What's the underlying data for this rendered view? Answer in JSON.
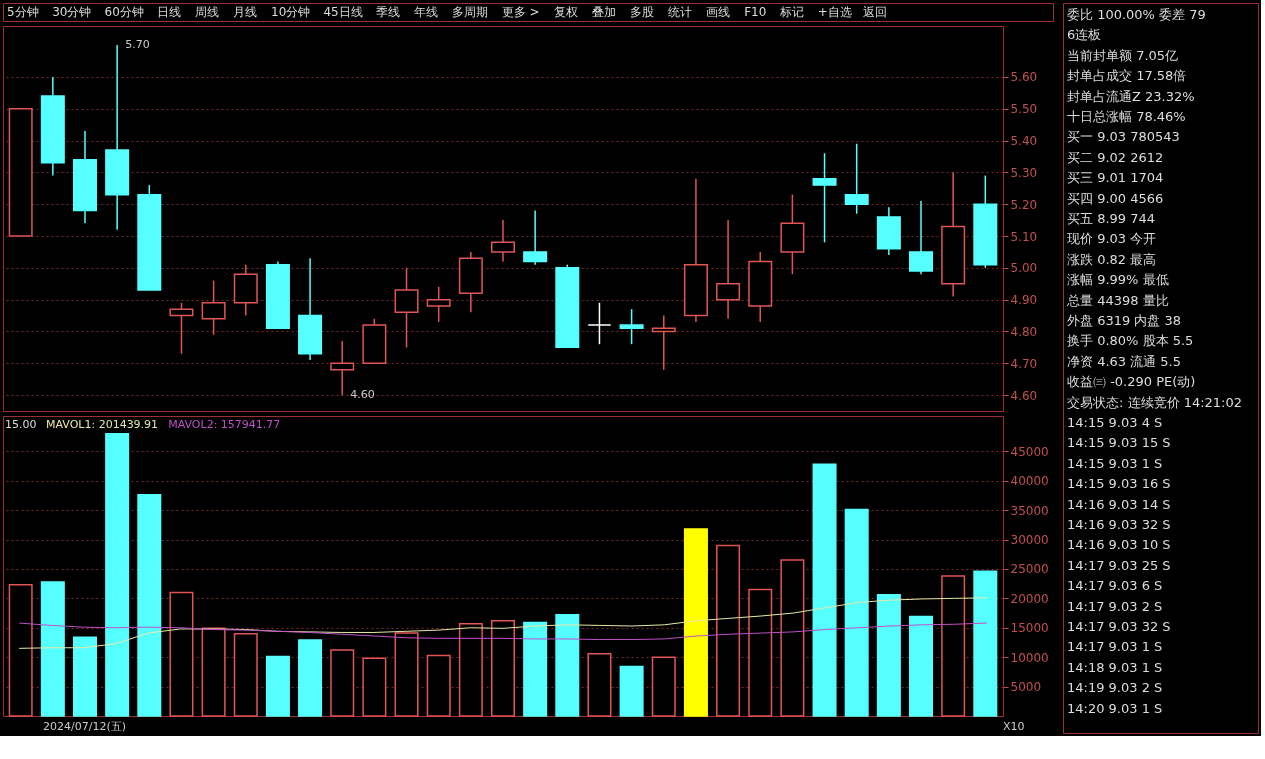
{
  "chart_data": [
    {
      "type": "other",
      "annotations": [
        "5分钟",
        "30分钟",
        "60分钟",
        "日线",
        "周线",
        "月线",
        "10分钟",
        "45日线",
        "季线",
        "年线",
        "多周期",
        "更多 >",
        "复权",
        "叠加",
        "多股",
        "统计",
        "画线",
        "F10",
        "标记",
        "+自选",
        "返回"
      ]
    },
    {
      "type": "candlestick",
      "categories": [
        null,
        null,
        null,
        null,
        null,
        null,
        null,
        null,
        null,
        null,
        null,
        null,
        null,
        null,
        null,
        null,
        null,
        null,
        null,
        null,
        null,
        null,
        null,
        null,
        null,
        null,
        null,
        null,
        null,
        null,
        null
      ],
      "ohlc": [
        [
          5.1,
          5.5,
          5.1,
          5.5
        ],
        [
          5.54,
          5.6,
          5.29,
          5.33
        ],
        [
          5.34,
          5.43,
          5.14,
          5.18
        ],
        [
          5.37,
          5.7,
          5.12,
          5.23
        ],
        [
          5.23,
          5.26,
          4.93,
          4.93
        ],
        [
          4.85,
          4.89,
          4.73,
          4.87
        ],
        [
          4.84,
          4.96,
          4.79,
          4.89
        ],
        [
          4.89,
          5.01,
          4.85,
          4.98
        ],
        [
          5.01,
          5.02,
          4.81,
          4.81
        ],
        [
          4.85,
          5.03,
          4.71,
          4.73
        ],
        [
          4.68,
          4.77,
          4.6,
          4.7
        ],
        [
          4.7,
          4.84,
          4.7,
          4.82
        ],
        [
          4.86,
          5.0,
          4.75,
          4.93
        ],
        [
          4.88,
          4.94,
          4.83,
          4.9
        ],
        [
          4.92,
          5.05,
          4.86,
          5.03
        ],
        [
          5.05,
          5.15,
          5.02,
          5.08
        ],
        [
          5.05,
          5.18,
          5.01,
          5.02
        ],
        [
          5.0,
          5.01,
          4.75,
          4.75
        ],
        [
          4.82,
          4.89,
          4.76,
          4.82
        ],
        [
          4.82,
          4.87,
          4.76,
          4.81
        ],
        [
          4.8,
          4.85,
          4.68,
          4.81
        ],
        [
          4.85,
          5.28,
          4.83,
          5.01
        ],
        [
          4.9,
          5.15,
          4.84,
          4.95
        ],
        [
          4.88,
          5.05,
          4.83,
          5.02
        ],
        [
          5.05,
          5.23,
          4.98,
          5.14
        ],
        [
          5.28,
          5.36,
          5.08,
          5.26
        ],
        [
          5.23,
          5.39,
          5.17,
          5.2
        ],
        [
          5.16,
          5.19,
          5.04,
          5.06
        ],
        [
          5.05,
          5.21,
          4.98,
          4.99
        ],
        [
          4.95,
          5.3,
          4.91,
          5.13
        ],
        [
          5.2,
          5.29,
          5.0,
          5.01
        ]
      ],
      "colors": [
        "#e05555",
        "#55ffff",
        "#55ffff",
        "#55ffff",
        "#55ffff",
        "#e05555",
        "#e05555",
        "#e05555",
        "#55ffff",
        "#55ffff",
        "#e05555",
        "#e05555",
        "#e05555",
        "#e05555",
        "#e05555",
        "#e05555",
        "#55ffff",
        "#55ffff",
        "#ffffff",
        "#55ffff",
        "#e05555",
        "#e05555",
        "#e05555",
        "#e05555",
        "#e05555",
        "#55ffff",
        "#55ffff",
        "#55ffff",
        "#55ffff",
        "#e05555",
        "#55ffff"
      ],
      "ylim": [
        4.55,
        5.76
      ],
      "yticks": [
        {
          "value": 4.6,
          "label": "4.60"
        },
        {
          "value": 4.7,
          "label": "4.70"
        },
        {
          "value": 4.8,
          "label": "4.80"
        },
        {
          "value": 4.9,
          "label": "4.90"
        },
        {
          "value": 5.0,
          "label": "5.00"
        },
        {
          "value": 5.1,
          "label": "5.10"
        },
        {
          "value": 5.2,
          "label": "5.20"
        },
        {
          "value": 5.3,
          "label": "5.30"
        },
        {
          "value": 5.4,
          "label": "5.40"
        },
        {
          "value": 5.5,
          "label": "5.50"
        },
        {
          "value": 5.6,
          "label": "5.60"
        }
      ],
      "annotations": [
        "5.70",
        "4.60"
      ],
      "grid": "y",
      "tick_labels": "y"
    },
    {
      "type": "bar",
      "categories": [
        null,
        null,
        null,
        null,
        null,
        null,
        null,
        null,
        null,
        null,
        null,
        null,
        null,
        null,
        null,
        null,
        null,
        null,
        null,
        null,
        null,
        null,
        null,
        null,
        null,
        null,
        null,
        null,
        null,
        null,
        null
      ],
      "series": [
        {
          "color": "#e05555",
          "values": [
            22300,
            null,
            null,
            null,
            null,
            21000,
            14900,
            14000,
            null,
            null,
            11200,
            9800,
            14100,
            10300,
            15700,
            16200,
            null,
            null,
            10600,
            null,
            10000,
            null,
            29000,
            21500,
            26500,
            null,
            null,
            null,
            null,
            23800,
            null
          ]
        },
        {
          "color": "#55ffff",
          "values": [
            null,
            22800,
            13400,
            48000,
            37600,
            null,
            null,
            null,
            10100,
            12900,
            null,
            null,
            null,
            null,
            null,
            null,
            15900,
            17200,
            null,
            8400,
            null,
            null,
            null,
            null,
            null,
            42800,
            35100,
            20600,
            16900,
            null,
            24600
          ]
        },
        {
          "color": "#ffff00",
          "values": [
            null,
            null,
            null,
            null,
            null,
            null,
            null,
            null,
            null,
            null,
            null,
            null,
            null,
            null,
            null,
            null,
            null,
            null,
            null,
            null,
            null,
            31800,
            null,
            null,
            null,
            null,
            null,
            null,
            null,
            null,
            null
          ]
        },
        {
          "type": "line",
          "name": "MAVOL1: 201439.91",
          "color": "#e8e8a8",
          "values": [
            11500,
            11600,
            11600,
            12300,
            14100,
            14800,
            14800,
            14700,
            14400,
            14300,
            14200,
            14200,
            14400,
            14600,
            15000,
            14900,
            15300,
            15500,
            15400,
            15300,
            15500,
            16200,
            16600,
            17000,
            17500,
            18400,
            19300,
            19700,
            19900,
            20000,
            20100
          ]
        },
        {
          "type": "line",
          "name": "MAVOL2: 157941.77",
          "color": "#c050c8",
          "values": [
            15800,
            15400,
            15100,
            15000,
            15100,
            15000,
            14700,
            14600,
            14400,
            14200,
            13900,
            13600,
            13300,
            13200,
            13200,
            13200,
            13100,
            13100,
            13000,
            13000,
            13100,
            13600,
            13900,
            14100,
            14300,
            14700,
            15000,
            15300,
            15500,
            15600,
            15800
          ]
        }
      ],
      "ylim": [
        0,
        51000
      ],
      "yticks": [
        5000,
        10000,
        15000,
        20000,
        25000,
        30000,
        35000,
        40000,
        45000
      ],
      "annotations": [
        "15.00",
        "2024/07/12(五)",
        "X10"
      ],
      "grid": "y",
      "legend": "top left",
      "tick_labels": "y"
    },
    {
      "type": "other",
      "annotations": [
        "委比 100.00% 委差 79",
        "6连板",
        "当前封单额 7.05亿",
        "封单占成交 17.58倍",
        "封单占流通Z 23.32%",
        "十日总涨幅 78.46%",
        "买一 9.03 780543",
        "买二 9.02 2612",
        "买三 9.01 1704",
        "买四 9.00 4566",
        "买五 8.99 744",
        "现价 9.03 今开",
        "涨跌 0.82 最高",
        "涨幅 9.99% 最低",
        "总量 44398 量比",
        "外盘 6319 内盘 38",
        "换手 0.80% 股本 5.5",
        "净资 4.63 流通 5.5",
        "收益㈢ -0.290 PE(动)",
        "交易状态: 连续竞价 14:21:02",
        "14:15 9.03 4 S",
        "14:15 9.03 15 S",
        "14:15 9.03 1 S",
        "14:15 9.03 16 S",
        "14:16 9.03 14 S",
        "14:16 9.03 32 S",
        "14:16 9.03 10 S",
        "14:17 9.03 25 S",
        "14:17 9.03 6 S",
        "14:17 9.03 2 S",
        "14:17 9.03 32 S",
        "14:17 9.03 1 S",
        "14:18 9.03 1 S",
        "14:19 9.03 2 S",
        "14:20 9.03 1 S"
      ]
    }
  ]
}
